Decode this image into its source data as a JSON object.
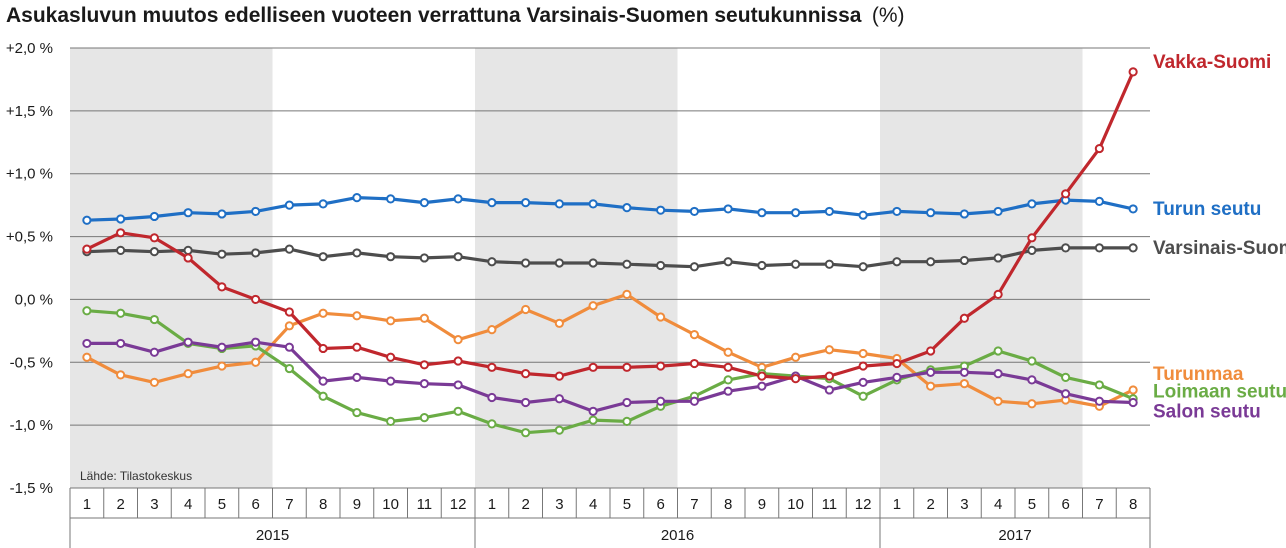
{
  "chart_data": {
    "type": "line",
    "title": "Asukasluvun muutos edelliseen vuoteen verrattuna Varsinais-Suomen seutukunnissa",
    "title_unit": "(%)",
    "source": "Lähde: Tilastokeskus",
    "ylim": [
      -1.5,
      2.0
    ],
    "yticks": [
      -1.5,
      -1.0,
      -0.5,
      0.0,
      0.5,
      1.0,
      1.5,
      2.0
    ],
    "ytick_labels": [
      "-1,5 %",
      "-1,0 %",
      "-0,5 %",
      "0,0 %",
      "+0,5 %",
      "+1,0 %",
      "+1,5 %",
      "+2,0 %"
    ],
    "grid": "horizontal",
    "years": [
      {
        "label": "2015",
        "months": [
          "1",
          "2",
          "3",
          "4",
          "5",
          "6",
          "7",
          "8",
          "9",
          "10",
          "11",
          "12"
        ],
        "shaded": true
      },
      {
        "label": "2016",
        "months": [
          "1",
          "2",
          "3",
          "4",
          "5",
          "6",
          "7",
          "8",
          "9",
          "10",
          "11",
          "12"
        ],
        "shaded": true
      },
      {
        "label": "2017",
        "months": [
          "1",
          "2",
          "3",
          "4",
          "5",
          "6",
          "7",
          "8"
        ],
        "shaded": true
      }
    ],
    "series": [
      {
        "name": "Turun seutu",
        "color": "#1f6fc5",
        "values": [
          0.63,
          0.64,
          0.66,
          0.69,
          0.68,
          0.7,
          0.75,
          0.76,
          0.81,
          0.8,
          0.77,
          0.8,
          0.77,
          0.77,
          0.76,
          0.76,
          0.73,
          0.71,
          0.7,
          0.72,
          0.69,
          0.69,
          0.7,
          0.67,
          0.7,
          0.69,
          0.68,
          0.7,
          0.76,
          0.79,
          0.78,
          0.72
        ]
      },
      {
        "name": "Varsinais-Suomi",
        "color": "#4d4d4d",
        "values": [
          0.38,
          0.39,
          0.38,
          0.39,
          0.36,
          0.37,
          0.4,
          0.34,
          0.37,
          0.34,
          0.33,
          0.34,
          0.3,
          0.29,
          0.29,
          0.29,
          0.28,
          0.27,
          0.26,
          0.3,
          0.27,
          0.28,
          0.28,
          0.26,
          0.3,
          0.3,
          0.31,
          0.33,
          0.39,
          0.41,
          0.41,
          0.41
        ]
      },
      {
        "name": "Turunmaa",
        "color": "#f08c3c",
        "values": [
          -0.46,
          -0.6,
          -0.66,
          -0.59,
          -0.53,
          -0.5,
          -0.21,
          -0.11,
          -0.13,
          -0.17,
          -0.15,
          -0.32,
          -0.24,
          -0.08,
          -0.19,
          -0.05,
          0.04,
          -0.14,
          -0.28,
          -0.42,
          -0.54,
          -0.46,
          -0.4,
          -0.43,
          -0.47,
          -0.69,
          -0.67,
          -0.81,
          -0.83,
          -0.8,
          -0.85,
          -0.72
        ]
      },
      {
        "name": "Loimaan seutu",
        "color": "#6aac45",
        "values": [
          -0.09,
          -0.11,
          -0.16,
          -0.35,
          -0.39,
          -0.37,
          -0.55,
          -0.77,
          -0.9,
          -0.97,
          -0.94,
          -0.89,
          -0.99,
          -1.06,
          -1.04,
          -0.96,
          -0.97,
          -0.85,
          -0.77,
          -0.64,
          -0.59,
          -0.61,
          -0.63,
          -0.77,
          -0.64,
          -0.56,
          -0.53,
          -0.41,
          -0.49,
          -0.62,
          -0.68,
          -0.79
        ]
      },
      {
        "name": "Salon seutu",
        "color": "#7a3a96",
        "values": [
          -0.35,
          -0.35,
          -0.42,
          -0.34,
          -0.38,
          -0.34,
          -0.38,
          -0.65,
          -0.62,
          -0.65,
          -0.67,
          -0.68,
          -0.78,
          -0.82,
          -0.79,
          -0.89,
          -0.82,
          -0.81,
          -0.81,
          -0.73,
          -0.69,
          -0.61,
          -0.72,
          -0.66,
          -0.62,
          -0.58,
          -0.58,
          -0.59,
          -0.64,
          -0.75,
          -0.81,
          -0.82
        ]
      },
      {
        "name": "Vakka-Suomi",
        "color": "#c0272d",
        "values": [
          0.4,
          0.53,
          0.49,
          0.33,
          0.1,
          0.0,
          -0.1,
          -0.39,
          -0.38,
          -0.46,
          -0.52,
          -0.49,
          -0.54,
          -0.59,
          -0.61,
          -0.54,
          -0.54,
          -0.53,
          -0.51,
          -0.54,
          -0.61,
          -0.63,
          -0.61,
          -0.53,
          -0.51,
          -0.41,
          -0.15,
          0.04,
          0.49,
          0.84,
          1.2,
          1.81
        ]
      }
    ]
  }
}
